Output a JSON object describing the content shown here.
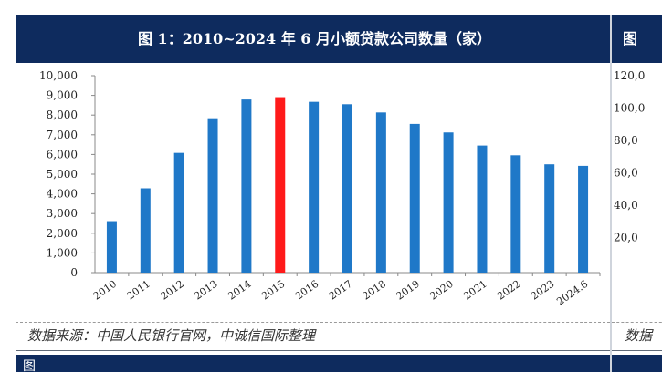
{
  "left_panel": {
    "title": "图 1：2010~2024 年 6 月小额贷款公司数量（家）",
    "source": "数据来源：中国人民银行官网，中诚信国际整理",
    "bottom_text": "图"
  },
  "right_panel": {
    "title_partial": "图",
    "source_partial": "数据",
    "y_ticks": [
      "120,0",
      "100,0",
      "80,0",
      "60,0",
      "40,0",
      "20,0"
    ]
  },
  "chart_data": {
    "type": "bar",
    "title": "图 1：2010~2024 年 6 月小额贷款公司数量（家）",
    "xlabel": "",
    "ylabel": "",
    "categories": [
      "2010",
      "2011",
      "2012",
      "2013",
      "2014",
      "2015",
      "2016",
      "2017",
      "2018",
      "2019",
      "2020",
      "2021",
      "2022",
      "2023",
      "2024.6"
    ],
    "values": [
      2614,
      4282,
      6080,
      7839,
      8791,
      8910,
      8673,
      8551,
      8133,
      7551,
      7118,
      6453,
      5958,
      5500,
      5421
    ],
    "highlight_index": 5,
    "colors": {
      "bar": "#1f78c8",
      "highlight": "#ff1a1a"
    },
    "ylim": [
      0,
      10000
    ],
    "y_ticks": [
      "0",
      "1,000",
      "2,000",
      "3,000",
      "4,000",
      "5,000",
      "6,000",
      "7,000",
      "8,000",
      "9,000",
      "10,000"
    ],
    "grid": false,
    "legend": "none"
  }
}
